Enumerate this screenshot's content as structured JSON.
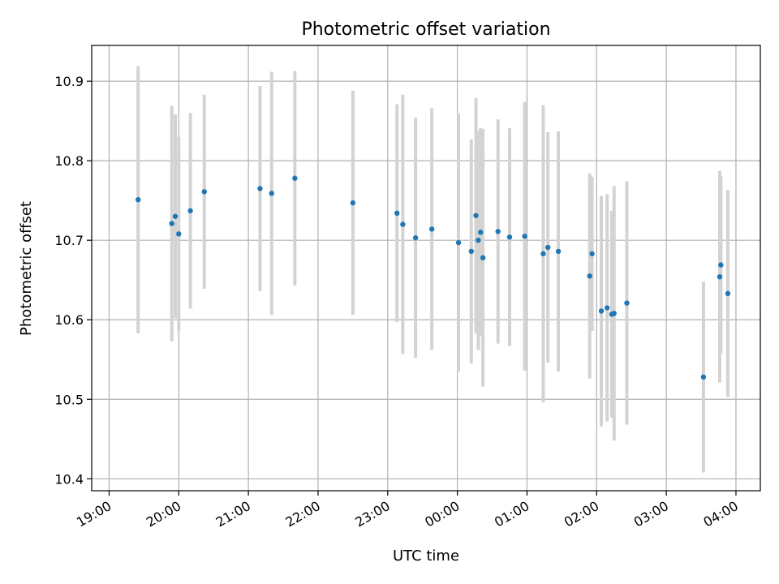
{
  "chart_data": {
    "type": "scatter",
    "title": "Photometric offset variation",
    "xlabel": "UTC time",
    "ylabel": "Photometric offset",
    "x_unit": "hours",
    "xlim": [
      -0.25,
      9.35
    ],
    "ylim": [
      10.385,
      10.945
    ],
    "grid": true,
    "x_ticks": [
      {
        "value": 0,
        "label": "19:00"
      },
      {
        "value": 1,
        "label": "20:00"
      },
      {
        "value": 2,
        "label": "21:00"
      },
      {
        "value": 3,
        "label": "22:00"
      },
      {
        "value": 4,
        "label": "23:00"
      },
      {
        "value": 5,
        "label": "00:00"
      },
      {
        "value": 6,
        "label": "01:00"
      },
      {
        "value": 7,
        "label": "02:00"
      },
      {
        "value": 8,
        "label": "03:00"
      },
      {
        "value": 9,
        "label": "04:00"
      }
    ],
    "y_ticks": [
      {
        "value": 10.4,
        "label": "10.4"
      },
      {
        "value": 10.5,
        "label": "10.5"
      },
      {
        "value": 10.6,
        "label": "10.6"
      },
      {
        "value": 10.7,
        "label": "10.7"
      },
      {
        "value": 10.8,
        "label": "10.8"
      },
      {
        "value": 10.9,
        "label": "10.9"
      }
    ],
    "marker_color": "#1f77b4",
    "errorbar_color": "#d3d3d3",
    "points": [
      {
        "time": "19:25",
        "y": 10.751,
        "err": 0.168
      },
      {
        "time": "19:54",
        "y": 10.721,
        "err": 0.148
      },
      {
        "time": "19:57",
        "y": 10.73,
        "err": 0.128
      },
      {
        "time": "20:00",
        "y": 10.708,
        "err": 0.122
      },
      {
        "time": "20:10",
        "y": 10.737,
        "err": 0.123
      },
      {
        "time": "20:22",
        "y": 10.761,
        "err": 0.122
      },
      {
        "time": "21:10",
        "y": 10.765,
        "err": 0.129
      },
      {
        "time": "21:20",
        "y": 10.759,
        "err": 0.153
      },
      {
        "time": "21:40",
        "y": 10.778,
        "err": 0.135
      },
      {
        "time": "22:30",
        "y": 10.747,
        "err": 0.141
      },
      {
        "time": "23:08",
        "y": 10.734,
        "err": 0.137
      },
      {
        "time": "23:13",
        "y": 10.72,
        "err": 0.163
      },
      {
        "time": "23:24",
        "y": 10.703,
        "err": 0.151
      },
      {
        "time": "23:38",
        "y": 10.714,
        "err": 0.152
      },
      {
        "time": "00:01",
        "y": 10.697,
        "err": 0.162
      },
      {
        "time": "00:12",
        "y": 10.686,
        "err": 0.141
      },
      {
        "time": "00:16",
        "y": 10.731,
        "err": 0.148
      },
      {
        "time": "00:18",
        "y": 10.7,
        "err": 0.138
      },
      {
        "time": "00:20",
        "y": 10.71,
        "err": 0.131
      },
      {
        "time": "00:22",
        "y": 10.678,
        "err": 0.162
      },
      {
        "time": "00:35",
        "y": 10.711,
        "err": 0.141
      },
      {
        "time": "00:45",
        "y": 10.704,
        "err": 0.137
      },
      {
        "time": "00:58",
        "y": 10.705,
        "err": 0.169
      },
      {
        "time": "01:14",
        "y": 10.683,
        "err": 0.187
      },
      {
        "time": "01:18",
        "y": 10.691,
        "err": 0.145
      },
      {
        "time": "01:27",
        "y": 10.686,
        "err": 0.151
      },
      {
        "time": "01:54",
        "y": 10.655,
        "err": 0.129
      },
      {
        "time": "01:56",
        "y": 10.683,
        "err": 0.097
      },
      {
        "time": "02:04",
        "y": 10.611,
        "err": 0.145
      },
      {
        "time": "02:09",
        "y": 10.615,
        "err": 0.143
      },
      {
        "time": "02:13",
        "y": 10.607,
        "err": 0.13
      },
      {
        "time": "02:15",
        "y": 10.608,
        "err": 0.16
      },
      {
        "time": "02:26",
        "y": 10.621,
        "err": 0.153
      },
      {
        "time": "03:32",
        "y": 10.528,
        "err": 0.12
      },
      {
        "time": "03:46",
        "y": 10.654,
        "err": 0.133
      },
      {
        "time": "03:47",
        "y": 10.669,
        "err": 0.112
      },
      {
        "time": "03:53",
        "y": 10.633,
        "err": 0.13
      }
    ]
  }
}
